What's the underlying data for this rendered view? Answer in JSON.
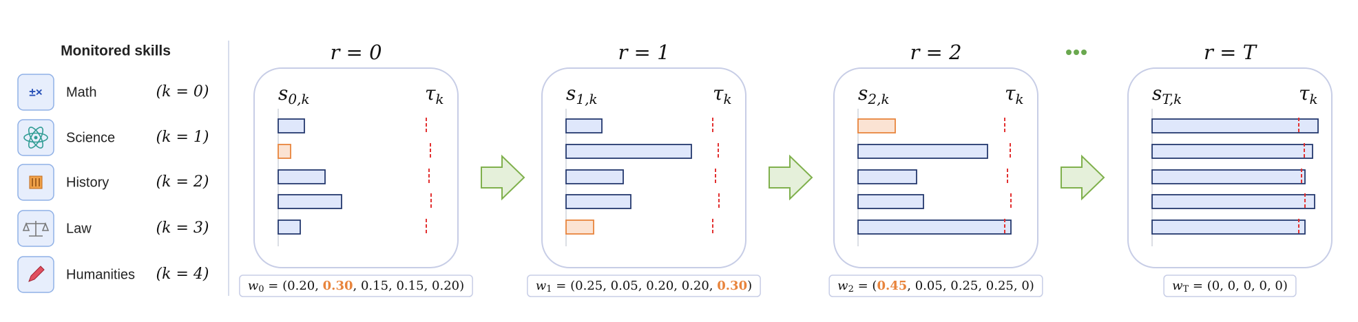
{
  "sidebar": {
    "title": "Monitored skills",
    "skills": [
      {
        "name": "Math",
        "index": "(k = 0)",
        "icon": "±×"
      },
      {
        "name": "Science",
        "index": "(k = 1)"
      },
      {
        "name": "History",
        "index": "(k = 2)"
      },
      {
        "name": "Law",
        "index": "(k = 3)"
      },
      {
        "name": "Humanities",
        "index": "(k = 4)"
      }
    ]
  },
  "notation": {
    "equals_open": " = (",
    "separator": ", ",
    "close": ")"
  },
  "rounds": [
    {
      "label": "r = 0",
      "score": {
        "symbol": "s",
        "subscript": "0,k"
      },
      "threshold": {
        "symbol": "τ",
        "subscript": "k"
      },
      "weights": {
        "symbol": "w",
        "subscript": "0",
        "values": [
          "0.20",
          "0.30",
          "0.15",
          "0.15",
          "0.20"
        ]
      },
      "highlight": 1
    },
    {
      "label": "r = 1",
      "score": {
        "symbol": "s",
        "subscript": "1,k"
      },
      "threshold": {
        "symbol": "τ",
        "subscript": "k"
      },
      "weights": {
        "symbol": "w",
        "subscript": "1",
        "values": [
          "0.25",
          "0.05",
          "0.20",
          "0.20",
          "0.30"
        ]
      },
      "highlight": 4
    },
    {
      "label": "r = 2",
      "score": {
        "symbol": "s",
        "subscript": "2,k"
      },
      "threshold": {
        "symbol": "τ",
        "subscript": "k"
      },
      "weights": {
        "symbol": "w",
        "subscript": "2",
        "values": [
          "0.45",
          "0.05",
          "0.25",
          "0.25",
          "0"
        ]
      },
      "highlight": 0
    },
    {
      "label": "r = T",
      "score": {
        "symbol": "s",
        "subscript": "T,k"
      },
      "threshold": {
        "symbol": "τ",
        "subscript": "k"
      },
      "weights": {
        "symbol": "w",
        "subscript": "T",
        "values": [
          "0",
          "0",
          "0",
          "0",
          "0"
        ]
      }
    }
  ]
}
